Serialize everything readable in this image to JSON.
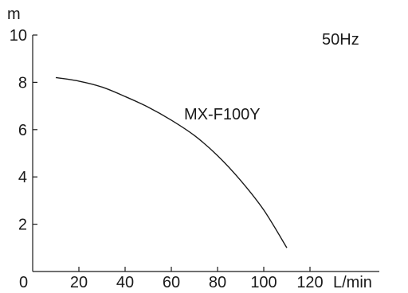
{
  "chart_data": {
    "type": "line",
    "title": "",
    "xlabel": "L/min",
    "ylabel": "m",
    "annotation": "50Hz",
    "origin_label": "0",
    "xlim": [
      0,
      150
    ],
    "ylim": [
      0,
      10
    ],
    "x_ticks": [
      20,
      40,
      60,
      80,
      100,
      120
    ],
    "y_ticks": [
      2,
      4,
      6,
      8,
      10
    ],
    "grid": false,
    "series": [
      {
        "name": "MX-F100Y",
        "x": [
          10,
          20,
          30,
          40,
          50,
          60,
          70,
          80,
          90,
          100,
          110
        ],
        "y": [
          8.2,
          8.05,
          7.8,
          7.4,
          6.95,
          6.4,
          5.75,
          4.9,
          3.85,
          2.6,
          1.0
        ]
      }
    ]
  }
}
